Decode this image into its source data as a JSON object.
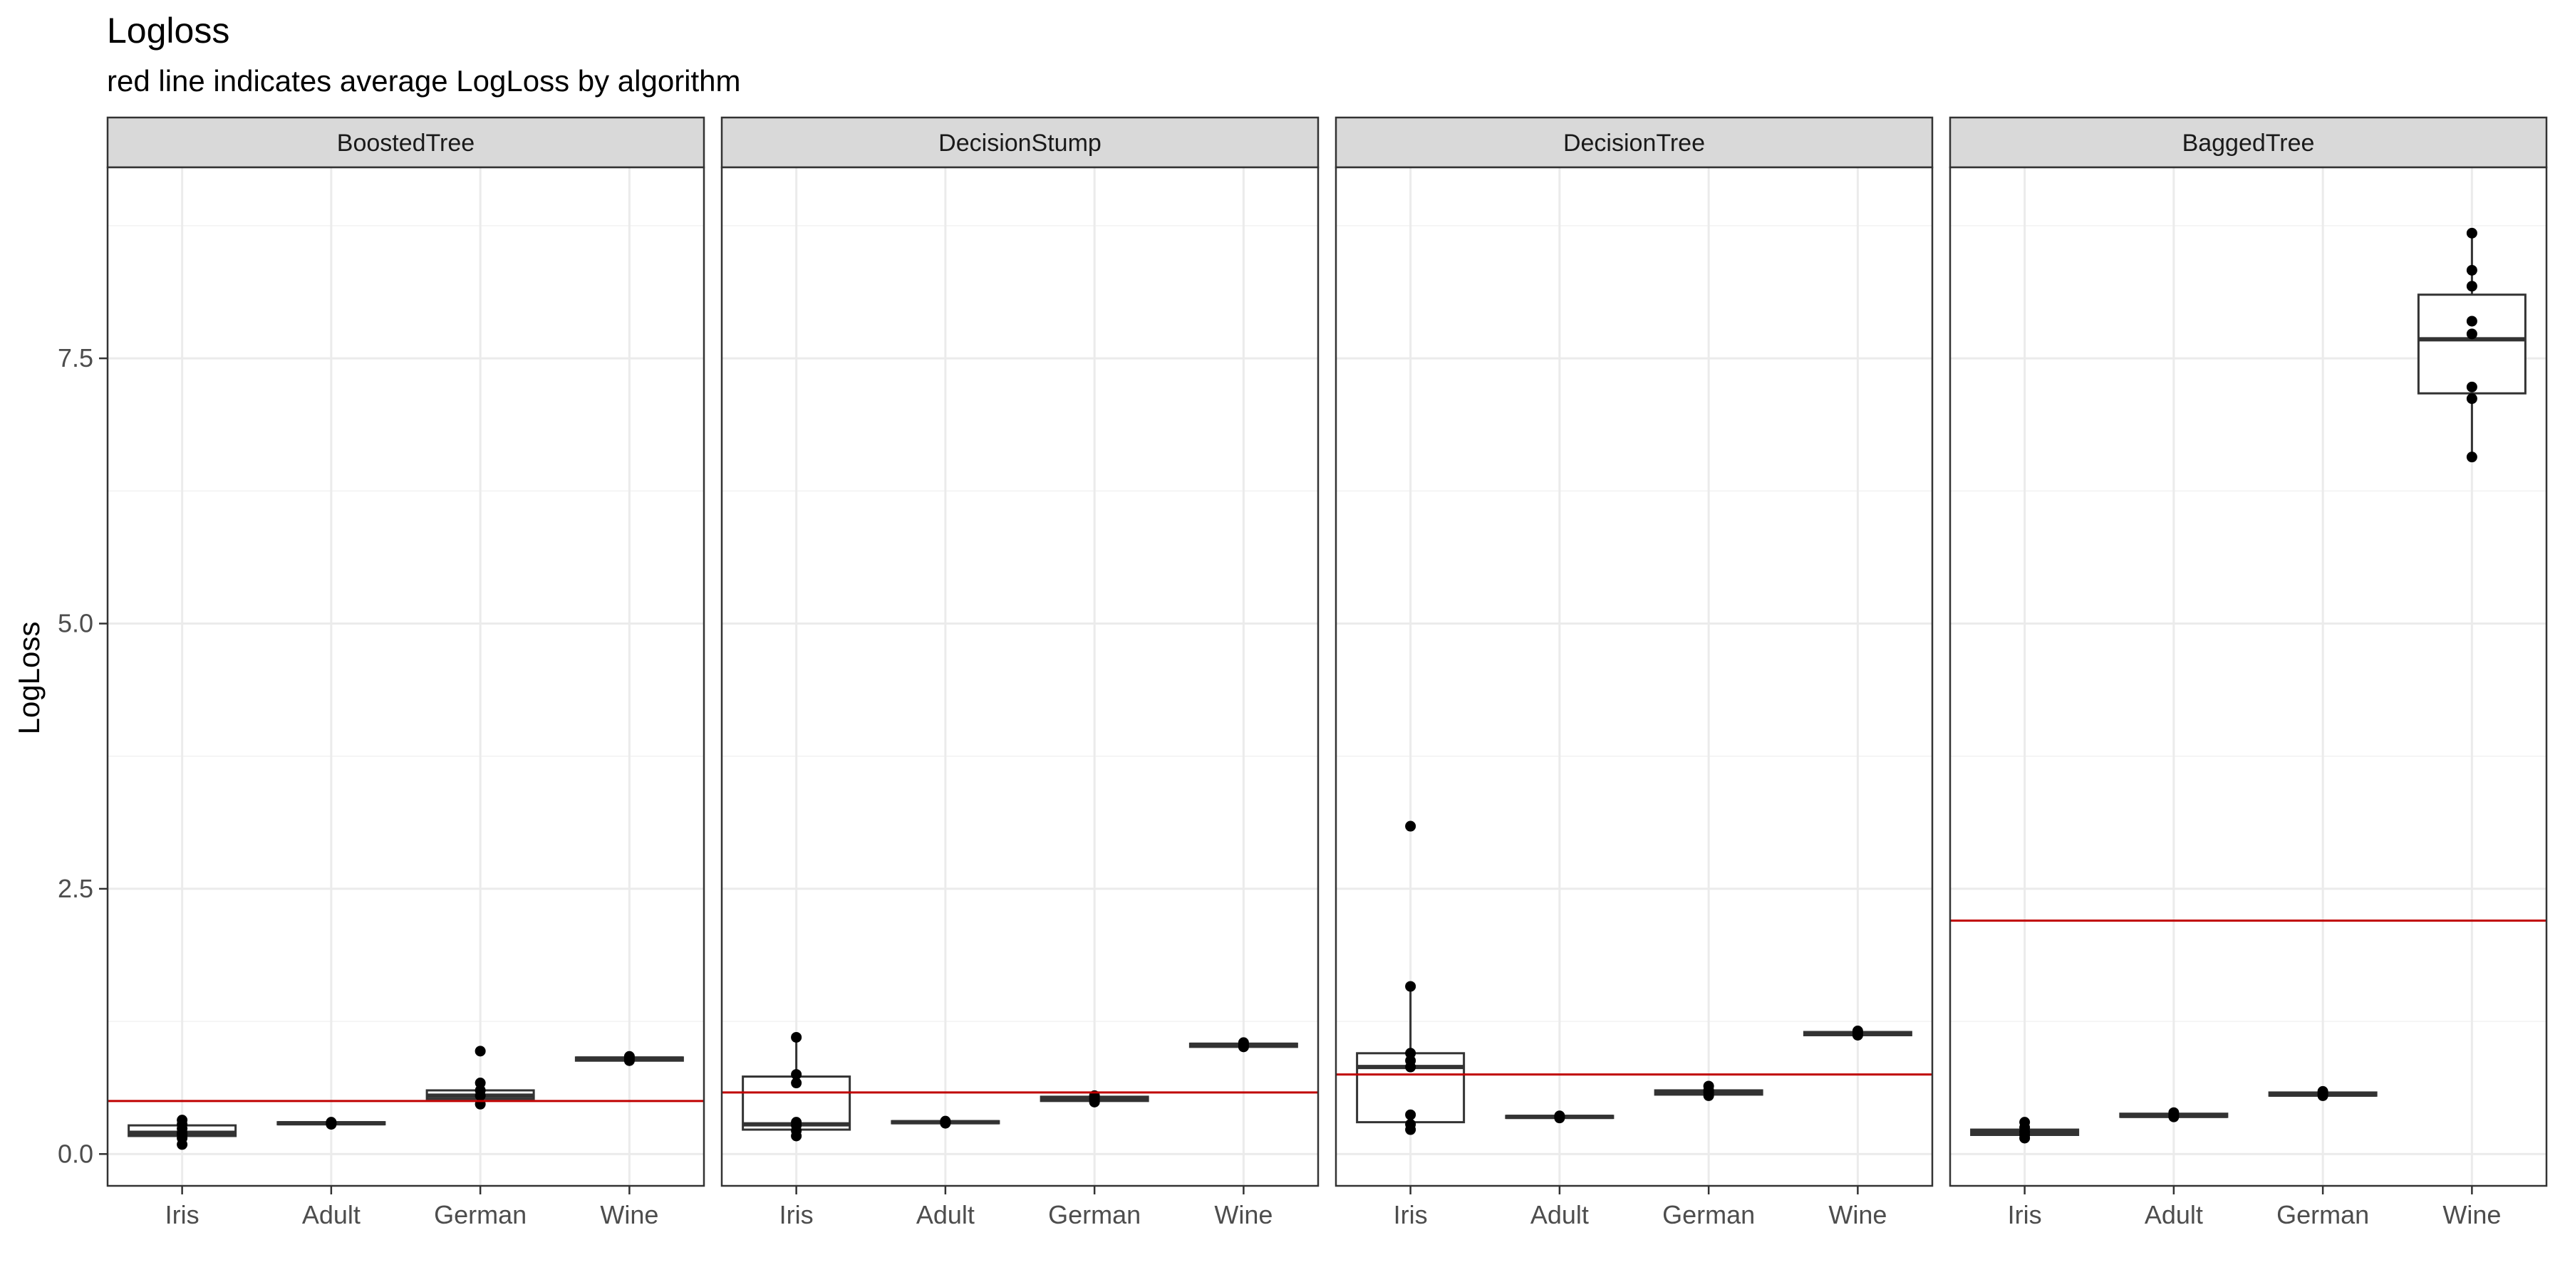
{
  "chart_data": {
    "type": "box",
    "title": "Logloss",
    "subtitle": "red line indicates average LogLoss by algorithm",
    "ylabel": "LogLoss",
    "xlabel": "",
    "ylim": [
      -0.3,
      9.3
    ],
    "yticks": [
      0.0,
      2.5,
      5.0,
      7.5
    ],
    "ytick_labels": [
      "0.0",
      "2.5",
      "5.0",
      "7.5"
    ],
    "categories": [
      "Iris",
      "Adult",
      "German",
      "Wine"
    ],
    "grid": true,
    "colors": {
      "mean_line": "#c00000",
      "box_stroke": "#333333",
      "points": "#000000",
      "strip_bg": "#d9d9d9",
      "grid": "#ebebeb",
      "panel_border": "#333333"
    },
    "panels": [
      {
        "name": "BoostedTree",
        "mean": 0.5,
        "boxes": [
          {
            "category": "Iris",
            "q1": 0.17,
            "median": 0.2,
            "q3": 0.27,
            "whisker_low": 0.09,
            "whisker_high": 0.33,
            "points": [
              0.09,
              0.15,
              0.18,
              0.2,
              0.24,
              0.28,
              0.32
            ]
          },
          {
            "category": "Adult",
            "q1": 0.28,
            "median": 0.29,
            "q3": 0.3,
            "whisker_low": 0.27,
            "whisker_high": 0.31,
            "points": [
              0.28,
              0.29,
              0.3
            ]
          },
          {
            "category": "German",
            "q1": 0.52,
            "median": 0.55,
            "q3": 0.6,
            "whisker_low": 0.47,
            "whisker_high": 0.7,
            "points": [
              0.47,
              0.55,
              0.6,
              0.67,
              0.97
            ]
          },
          {
            "category": "Wine",
            "q1": 0.88,
            "median": 0.9,
            "q3": 0.91,
            "whisker_low": 0.87,
            "whisker_high": 0.93,
            "points": [
              0.88,
              0.9,
              0.92
            ]
          }
        ]
      },
      {
        "name": "DecisionStump",
        "mean": 0.58,
        "boxes": [
          {
            "category": "Iris",
            "q1": 0.23,
            "median": 0.28,
            "q3": 0.73,
            "whisker_low": 0.17,
            "whisker_high": 1.1,
            "points": [
              0.17,
              0.22,
              0.27,
              0.3,
              0.67,
              0.75,
              1.1
            ]
          },
          {
            "category": "Adult",
            "q1": 0.29,
            "median": 0.3,
            "q3": 0.31,
            "whisker_low": 0.28,
            "whisker_high": 0.32,
            "points": [
              0.29,
              0.3,
              0.31
            ]
          },
          {
            "category": "German",
            "q1": 0.5,
            "median": 0.52,
            "q3": 0.54,
            "whisker_low": 0.48,
            "whisker_high": 0.56,
            "points": [
              0.49,
              0.52,
              0.55
            ]
          },
          {
            "category": "Wine",
            "q1": 1.01,
            "median": 1.03,
            "q3": 1.04,
            "whisker_low": 1.0,
            "whisker_high": 1.06,
            "points": [
              1.01,
              1.03,
              1.05
            ]
          }
        ]
      },
      {
        "name": "DecisionTree",
        "mean": 0.75,
        "boxes": [
          {
            "category": "Iris",
            "q1": 0.3,
            "median": 0.82,
            "q3": 0.95,
            "whisker_low": 0.23,
            "whisker_high": 1.58,
            "points": [
              0.23,
              0.28,
              0.37,
              0.82,
              0.88,
              0.95,
              1.58,
              3.09
            ]
          },
          {
            "category": "Adult",
            "q1": 0.34,
            "median": 0.35,
            "q3": 0.36,
            "whisker_low": 0.33,
            "whisker_high": 0.37,
            "points": [
              0.34,
              0.35,
              0.36
            ]
          },
          {
            "category": "German",
            "q1": 0.56,
            "median": 0.58,
            "q3": 0.6,
            "whisker_low": 0.54,
            "whisker_high": 0.65,
            "points": [
              0.55,
              0.58,
              0.6,
              0.64
            ]
          },
          {
            "category": "Wine",
            "q1": 1.12,
            "median": 1.14,
            "q3": 1.15,
            "whisker_low": 1.1,
            "whisker_high": 1.17,
            "points": [
              1.12,
              1.14,
              1.16
            ]
          }
        ]
      },
      {
        "name": "BaggedTree",
        "mean": 2.2,
        "boxes": [
          {
            "category": "Iris",
            "q1": 0.18,
            "median": 0.2,
            "q3": 0.23,
            "whisker_low": 0.15,
            "whisker_high": 0.3,
            "points": [
              0.15,
              0.18,
              0.21,
              0.25,
              0.3
            ]
          },
          {
            "category": "Adult",
            "q1": 0.35,
            "median": 0.36,
            "q3": 0.38,
            "whisker_low": 0.33,
            "whisker_high": 0.4,
            "points": [
              0.35,
              0.37,
              0.39
            ]
          },
          {
            "category": "German",
            "q1": 0.55,
            "median": 0.56,
            "q3": 0.58,
            "whisker_low": 0.53,
            "whisker_high": 0.6,
            "points": [
              0.55,
              0.57,
              0.59
            ]
          },
          {
            "category": "Wine",
            "q1": 7.17,
            "median": 7.68,
            "q3": 8.1,
            "whisker_low": 6.57,
            "whisker_high": 8.68,
            "points": [
              6.57,
              7.12,
              7.23,
              7.73,
              7.85,
              8.18,
              8.33,
              8.68
            ]
          }
        ]
      }
    ]
  }
}
